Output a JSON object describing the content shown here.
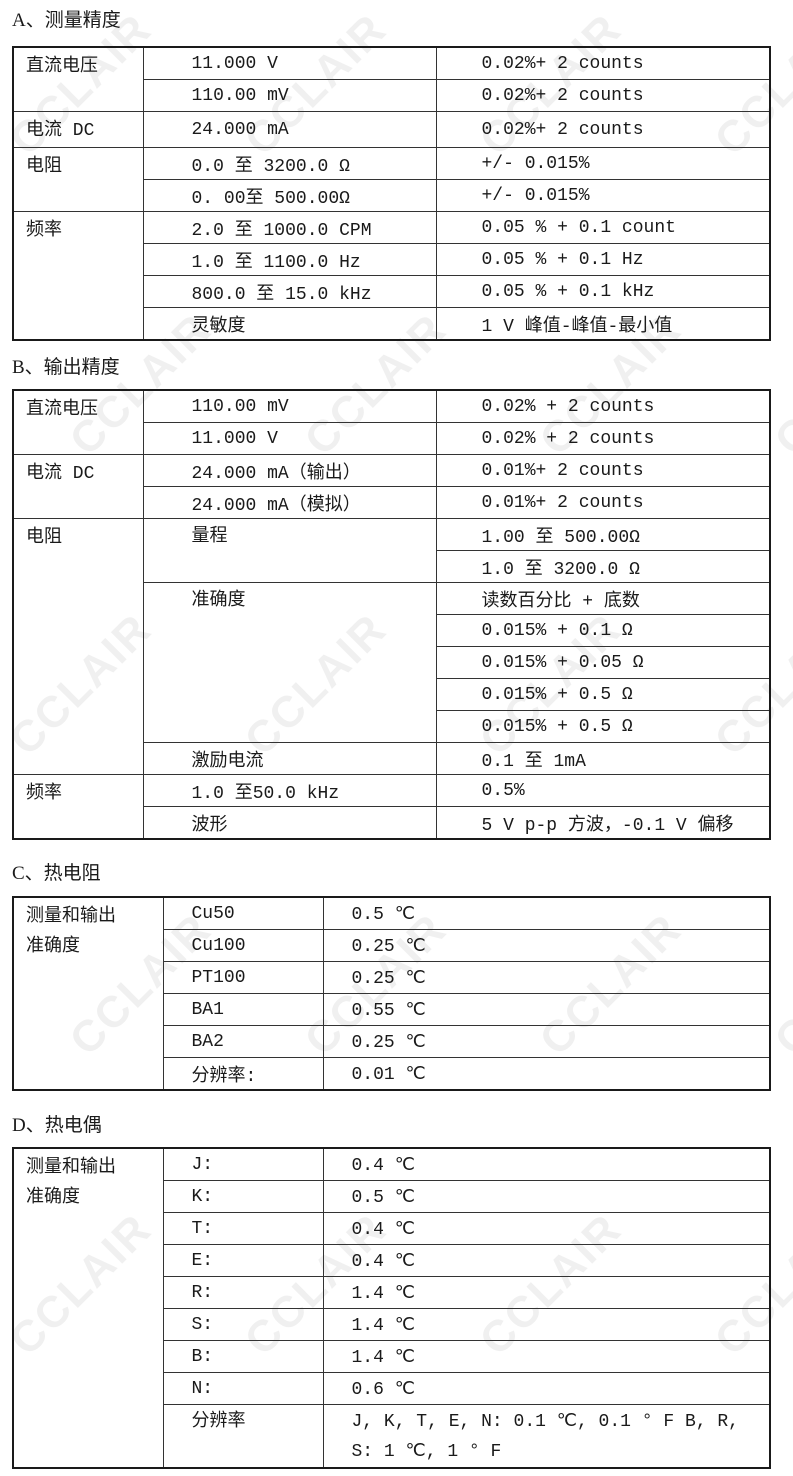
{
  "watermark": "CCLAIR",
  "sections": [
    {
      "title": "A、测量精度",
      "groups": [
        {
          "label": "直流电压",
          "rows": [
            [
              "11.000 V",
              "0.02%+ 2 counts"
            ],
            [
              "110.00 mV",
              "0.02%+ 2 counts"
            ]
          ]
        },
        {
          "label": "电流 DC",
          "rows": [
            [
              "24.000 mA",
              "0.02%+ 2 counts"
            ]
          ]
        },
        {
          "label": "电阻",
          "rows": [
            [
              "0.0 至 3200.0 Ω",
              "+/- 0.015%"
            ],
            [
              "0. 00至 500.00Ω",
              "+/- 0.015%"
            ]
          ]
        },
        {
          "label": "频率",
          "rows": [
            [
              "2.0 至 1000.0 CPM",
              "0.05 % + 0.1 count"
            ],
            [
              "1.0 至 1100.0 Hz",
              "0.05 % + 0.1 Hz"
            ],
            [
              "800.0 至 15.0 kHz",
              "0.05 % + 0.1 kHz"
            ],
            [
              "灵敏度",
              "1 V 峰值-峰值-最小值"
            ]
          ]
        }
      ]
    },
    {
      "title": "B、输出精度",
      "groups": [
        {
          "label": "直流电压",
          "rows": [
            [
              "110.00 mV",
              "0.02% + 2 counts"
            ],
            [
              "11.000 V",
              "0.02% + 2 counts"
            ]
          ]
        },
        {
          "label": "电流 DC",
          "rows": [
            [
              "24.000 mA（输出）",
              "0.01%+ 2 counts"
            ],
            [
              "24.000 mA（模拟）",
              "0.01%+ 2 counts"
            ]
          ]
        },
        {
          "label": "电阻",
          "rows": [
            {
              "name": "量程",
              "values": [
                "1.00 至 500.00Ω",
                "1.0 至 3200.0 Ω"
              ]
            },
            {
              "name": "准确度",
              "values": [
                "读数百分比 + 底数",
                "0.015% + 0.1 Ω",
                "0.015% + 0.05 Ω",
                "0.015% + 0.5 Ω",
                "0.015% + 0.5 Ω"
              ]
            },
            {
              "name": "激励电流",
              "values": [
                "0.1 至 1mA"
              ]
            }
          ]
        },
        {
          "label": "频率",
          "rows": [
            [
              "1.0 至50.0 kHz",
              "0.5%"
            ],
            [
              "波形",
              "5 V p-p 方波，-0.1 V 偏移"
            ]
          ]
        }
      ]
    },
    {
      "title": "C、热电阻",
      "groups": [
        {
          "label": "测量和输出\n准确度",
          "rows": [
            [
              "Cu50",
              "0.5 ℃"
            ],
            [
              "Cu100",
              "0.25 ℃"
            ],
            [
              "PT100",
              "0.25 ℃"
            ],
            [
              "BA1",
              "0.55 ℃"
            ],
            [
              "BA2",
              "0.25 ℃"
            ],
            [
              "分辨率:",
              "0.01 ℃"
            ]
          ]
        }
      ]
    },
    {
      "title": "D、热电偶",
      "groups": [
        {
          "label": "测量和输出\n准确度",
          "rows": [
            [
              "J:",
              "0.4 ℃"
            ],
            [
              "K:",
              "0.5 ℃"
            ],
            [
              "T:",
              "0.4 ℃"
            ],
            [
              "E:",
              "0.4 ℃"
            ],
            [
              "R:",
              "1.4 ℃"
            ],
            [
              "S:",
              "1.4 ℃"
            ],
            [
              "B:",
              "1.4 ℃"
            ],
            [
              "N:",
              "0.6 ℃"
            ],
            [
              "分辨率",
              "J, K, T, E, N: 0.1 ℃, 0.1 ° F B, R, S: 1 ℃, 1 ° F"
            ]
          ]
        }
      ]
    }
  ]
}
